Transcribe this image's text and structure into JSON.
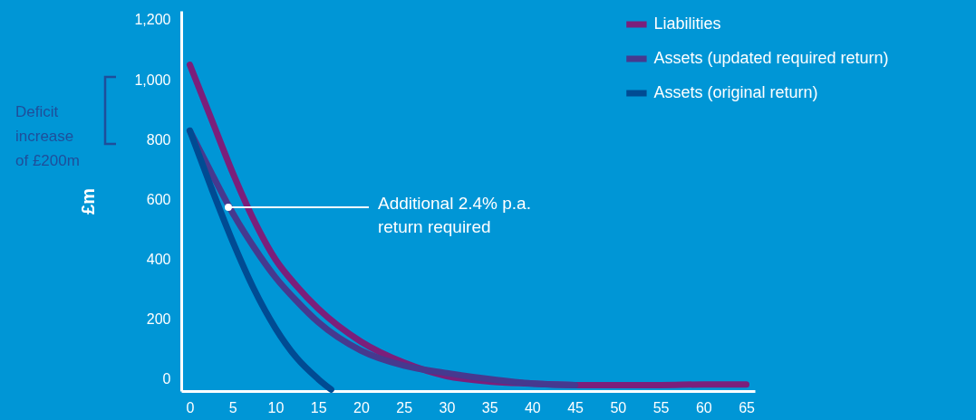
{
  "chart_data": {
    "type": "line",
    "ylabel": "£m",
    "xlim": [
      -1,
      66
    ],
    "ylim": [
      -40,
      1230
    ],
    "xticks": [
      0,
      5,
      10,
      15,
      20,
      25,
      30,
      35,
      40,
      45,
      50,
      55,
      60,
      65
    ],
    "yticks": [
      {
        "value": 0,
        "label": "0"
      },
      {
        "value": 200,
        "label": "200"
      },
      {
        "value": 400,
        "label": "400"
      },
      {
        "value": 600,
        "label": "600"
      },
      {
        "value": 800,
        "label": "800"
      },
      {
        "value": 1000,
        "label": "1,000"
      },
      {
        "value": 1200,
        "label": "1,200"
      }
    ],
    "grid": false,
    "legend": "top right",
    "marker": "none",
    "line_style": "solid",
    "series": [
      {
        "name": "Liabilities",
        "color": "#7b1f7b",
        "x": [
          0,
          2.5,
          5,
          7.5,
          10,
          12.5,
          15,
          20,
          25,
          30,
          35,
          40,
          45,
          50,
          55,
          60,
          65
        ],
        "values": [
          1050,
          870,
          690,
          530,
          400,
          310,
          235,
          125,
          55,
          10,
          -8,
          -15,
          -20,
          -20,
          -20,
          -18,
          -18
        ]
      },
      {
        "name": "Assets (updated required return)",
        "color": "#46398f",
        "x": [
          0,
          2.5,
          5,
          7.5,
          10,
          12.5,
          15,
          20,
          25,
          30,
          35,
          40,
          45
        ],
        "values": [
          830,
          690,
          555,
          440,
          340,
          260,
          190,
          95,
          45,
          20,
          0,
          -15,
          -20
        ]
      },
      {
        "name": "Assets (original return)",
        "color": "#004b93",
        "x": [
          0,
          2.5,
          5,
          7.5,
          10,
          12.5,
          15,
          16.5
        ],
        "values": [
          830,
          640,
          460,
          300,
          170,
          70,
          0,
          -35
        ]
      }
    ],
    "annotations": [
      {
        "text": "Additional 2.4% p.a.\nreturn required",
        "x": 4.5,
        "y": 575
      },
      "Deficit\nincrease\nof £200m"
    ]
  }
}
